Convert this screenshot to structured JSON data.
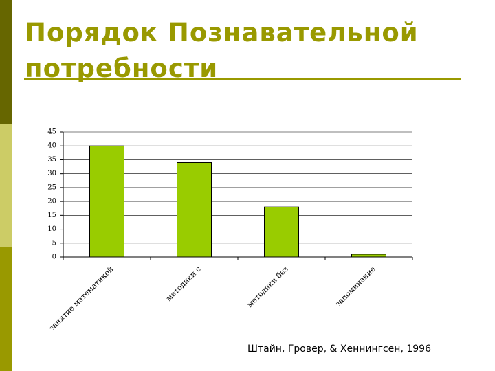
{
  "title": "Порядок Познавательной потребности",
  "source": "Штайн, Гровер, & Хеннингсен, 1996",
  "chart_data": {
    "type": "bar",
    "categories": [
      "занятие математикой",
      "методики с",
      "методики без",
      "запоминание"
    ],
    "values": [
      40,
      34,
      18,
      1
    ],
    "color": "#99cc00",
    "ylim": [
      0,
      45
    ],
    "yticks": [
      0,
      5,
      10,
      15,
      20,
      25,
      30,
      35,
      40,
      45
    ],
    "grid": true
  }
}
